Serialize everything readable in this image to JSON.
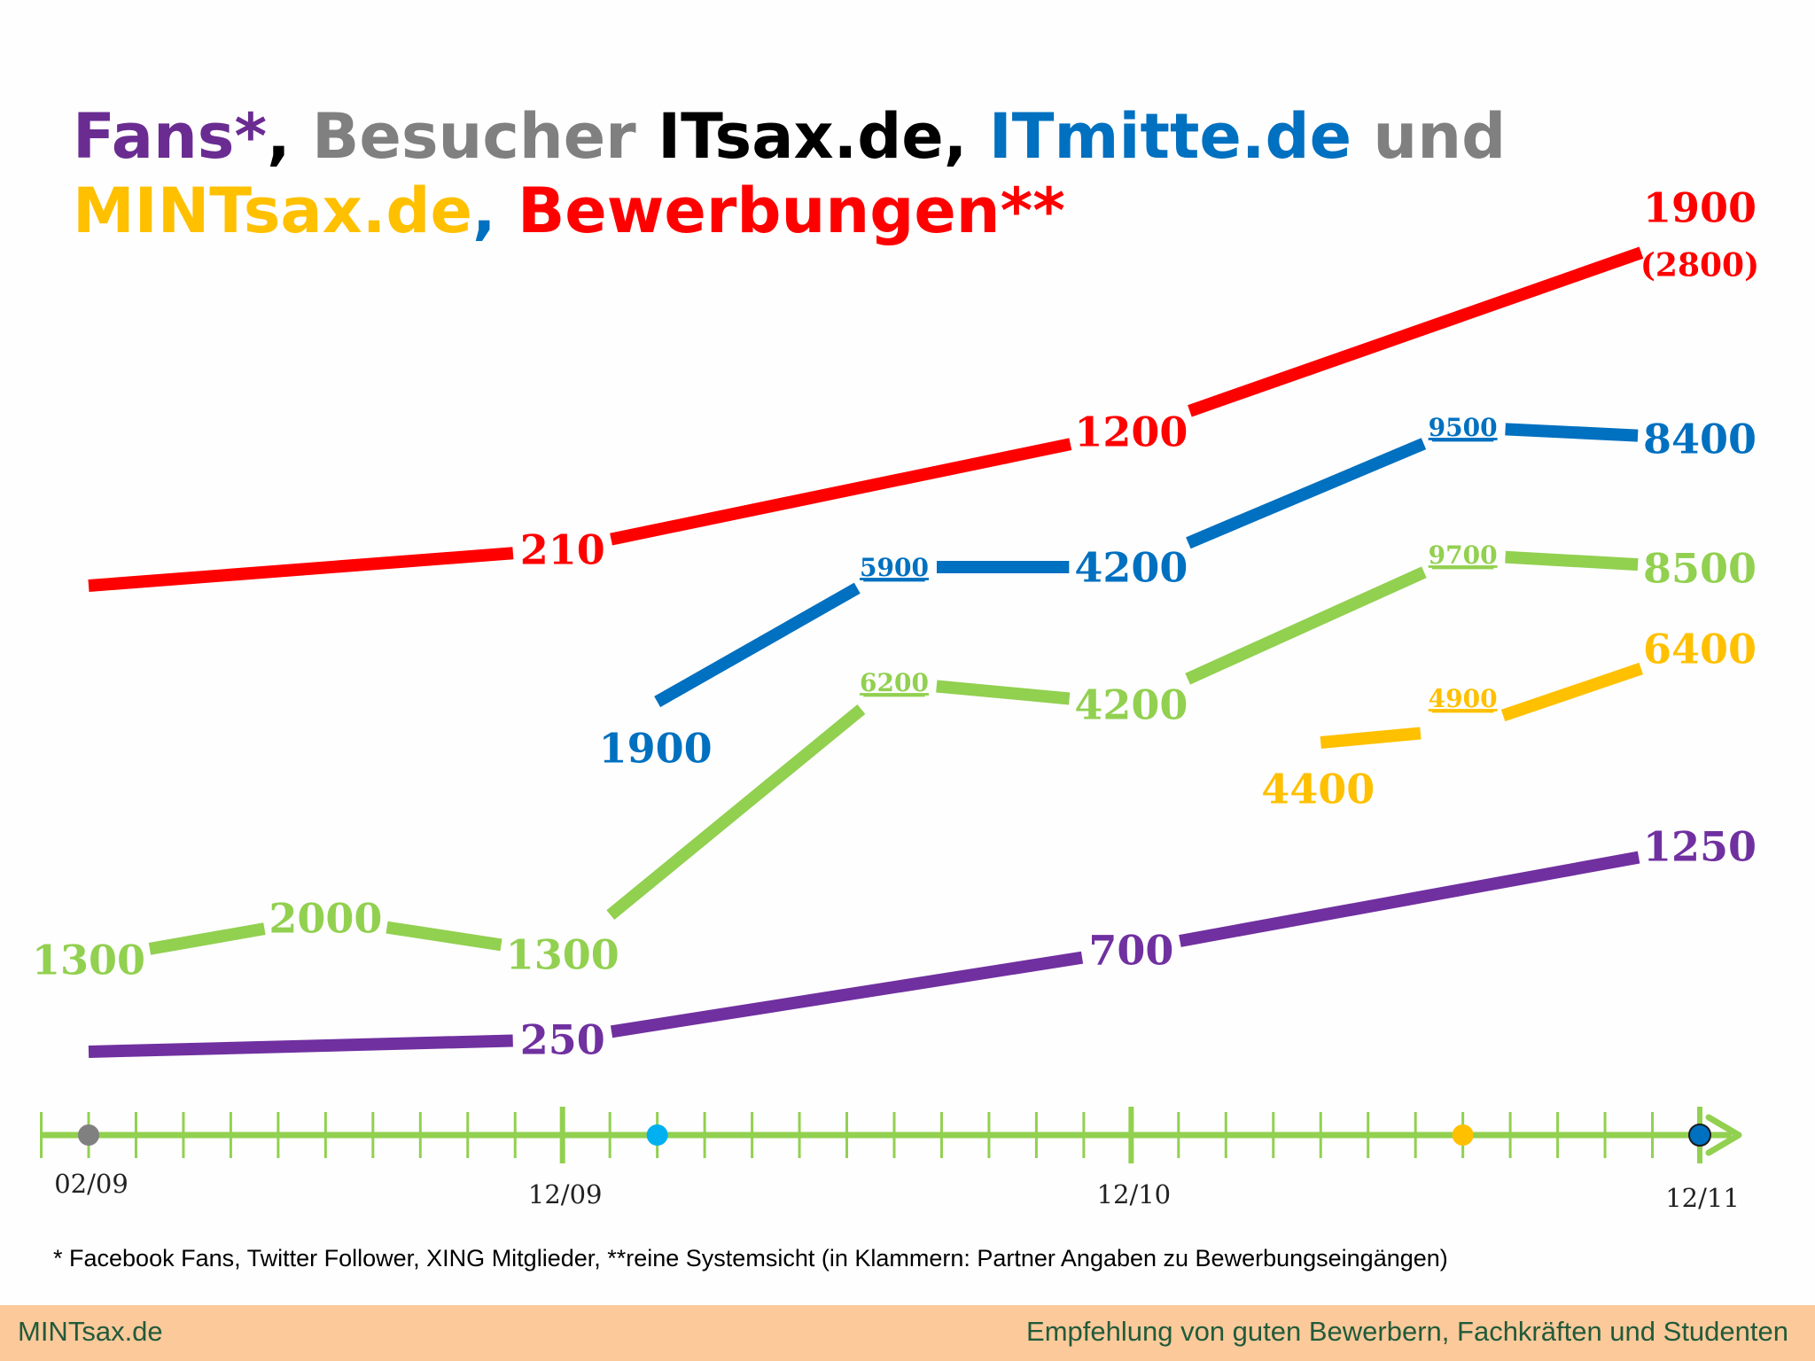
{
  "title": {
    "line1": [
      {
        "text": "Fans*",
        "color": "#6a2c91"
      },
      {
        "text": ", ",
        "color": "#000000"
      },
      {
        "text": "Besucher ",
        "color": "#808080"
      },
      {
        "text": "ITsax.de, ",
        "color": "#000000"
      },
      {
        "text": "ITmitte.de",
        "color": "#0070c0"
      },
      {
        "text": " und",
        "color": "#808080"
      }
    ],
    "line2": [
      {
        "text": "MINTsax.de",
        "color": "#ffc000"
      },
      {
        "text": ", ",
        "color": "#0070c0"
      },
      {
        "text": "Bewerbungen**",
        "color": "#ff0000"
      }
    ]
  },
  "footnote": "* Facebook Fans, Twitter Follower, XING Mitglieder, **reine Systemsicht (in Klammern: Partner Angaben zu Bewerbungseingängen)",
  "footer": {
    "left": "MINTsax.de",
    "right": "Empfehlung von guten Bewerbern, Fachkräften und Studenten",
    "background": "#fcc99a",
    "text_color": "#215b3a"
  },
  "chart_data": {
    "type": "line",
    "x_axis": {
      "tick_labels": [
        "02/09",
        "12/09",
        "12/10",
        "12/11"
      ],
      "start": "2009-02",
      "end": "2011-12",
      "color": "#92d050",
      "markers": [
        {
          "date": "2009-02",
          "color": "#808080"
        },
        {
          "date": "2010-02",
          "color": "#00b0f0"
        },
        {
          "date": "2011-07",
          "color": "#ffc000"
        },
        {
          "date": "2011-12",
          "color": "#0070c0"
        }
      ]
    },
    "series": [
      {
        "name": "Bewerbungen**",
        "color": "#ff0000",
        "points": [
          {
            "x": "2009-02",
            "label": ""
          },
          {
            "x": "2009-12",
            "label": "210",
            "value": 210
          },
          {
            "x": "2010-12",
            "label": "1200",
            "value": 1200
          },
          {
            "x": "2011-12",
            "label": "1900",
            "value": 1900,
            "sublabel": "(2800)"
          }
        ]
      },
      {
        "name": "ITmitte.de",
        "color": "#0070c0",
        "points": [
          {
            "x": "2010-02",
            "label": "1900",
            "value": 1900
          },
          {
            "x": "2010-07",
            "label": "5900",
            "value": 5900
          },
          {
            "x": "2010-12",
            "label": "4200",
            "value": 4200
          },
          {
            "x": "2011-07",
            "label": "9500",
            "value": 9500
          },
          {
            "x": "2011-12",
            "label": "8400",
            "value": 8400
          }
        ]
      },
      {
        "name": "ITsax.de",
        "color": "#92d050",
        "points": [
          {
            "x": "2009-02",
            "label": "1300",
            "value": 1300
          },
          {
            "x": "2009-07",
            "label": "2000",
            "value": 2000
          },
          {
            "x": "2009-12",
            "label": "1300",
            "value": 1300
          },
          {
            "x": "2010-07",
            "label": "6200",
            "value": 6200
          },
          {
            "x": "2010-12",
            "label": "4200",
            "value": 4200
          },
          {
            "x": "2011-07",
            "label": "9700",
            "value": 9700
          },
          {
            "x": "2011-12",
            "label": "8500",
            "value": 8500
          }
        ]
      },
      {
        "name": "MINTsax.de",
        "color": "#ffc000",
        "points": [
          {
            "x": "2011-04",
            "label": "4400",
            "value": 4400
          },
          {
            "x": "2011-07",
            "label": "4900",
            "value": 4900
          },
          {
            "x": "2011-12",
            "label": "6400",
            "value": 6400
          }
        ]
      },
      {
        "name": "Fans*",
        "color": "#7030a0",
        "points": [
          {
            "x": "2009-02",
            "label": ""
          },
          {
            "x": "2009-12",
            "label": "250",
            "value": 250
          },
          {
            "x": "2010-12",
            "label": "700",
            "value": 700
          },
          {
            "x": "2011-12",
            "label": "1250",
            "value": 1250
          }
        ]
      }
    ]
  }
}
